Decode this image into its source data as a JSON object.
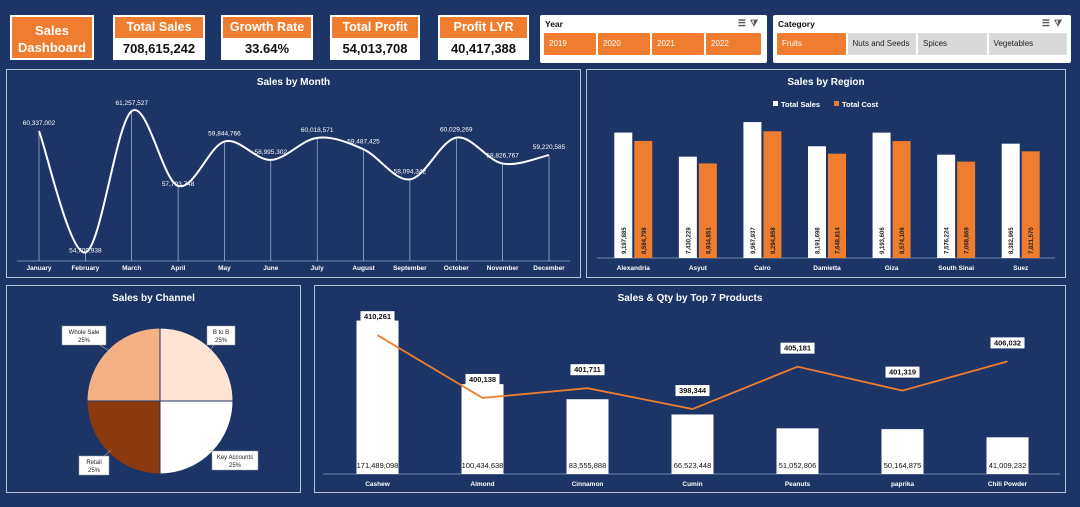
{
  "header": {
    "title": "Sales Dashboard"
  },
  "kpis": [
    {
      "label": "Total Sales",
      "value": "708,615,242"
    },
    {
      "label": "Growth Rate",
      "value": "33.64%"
    },
    {
      "label": "Total Profit",
      "value": "54,013,708"
    },
    {
      "label": "Profit LYR",
      "value": "40,417,388"
    }
  ],
  "slicers": {
    "year": {
      "title": "Year",
      "items": [
        "2019",
        "2020",
        "2021",
        "2022"
      ],
      "selected": [
        "2019",
        "2020",
        "2021",
        "2022"
      ]
    },
    "category": {
      "title": "Category",
      "items": [
        "Fruits",
        "Nuts and Seeds",
        "Spices",
        "Vegetables"
      ],
      "selected": [
        "Fruits"
      ]
    }
  },
  "colors": {
    "background": "#1c3466",
    "accent": "#ee7d2f",
    "series_sales": "#ffffff",
    "series_cost": "#ee7d2f",
    "pie": [
      "#ffe3d5",
      "#ffffff",
      "#8b3a0f",
      "#f4b183"
    ]
  },
  "icons": {
    "multi_select": "multi-select-icon",
    "clear_filter": "clear-filter-icon"
  },
  "chart_data": [
    {
      "type": "line",
      "title": "Sales by Month",
      "categories": [
        "January",
        "February",
        "March",
        "April",
        "May",
        "June",
        "July",
        "August",
        "September",
        "October",
        "November",
        "December"
      ],
      "values": [
        60337002,
        54709938,
        61257527,
        57793748,
        59844766,
        58995302,
        60018571,
        59487425,
        58094342,
        60029269,
        58826767,
        59220585
      ],
      "labels": [
        "60,337,002",
        "54,709,938",
        "61,257,527",
        "57,793,748",
        "59,844,766",
        "58,995,302",
        "60,018,571",
        "59,487,425",
        "58,094,342",
        "60,029,269",
        "58,826,767",
        "59,220,585"
      ],
      "grid": "vertical"
    },
    {
      "type": "bar",
      "title": "Sales by Region",
      "legend": "top",
      "categories": [
        "Alexandria",
        "Asyut",
        "Cairo",
        "Damietta",
        "Giza",
        "South Sinai",
        "Suez"
      ],
      "series": [
        {
          "name": "Total Sales",
          "values": [
            9197885,
            7430229,
            9967937,
            8191698,
            9193606,
            7576224,
            8382965
          ],
          "labels": [
            "9,197,885",
            "7,430,229",
            "9,967,937",
            "8,191,698",
            "9,193,606",
            "7,576,224",
            "8,382,965"
          ]
        },
        {
          "name": "Total Cost",
          "values": [
            8584798,
            6934851,
            9294858,
            7648814,
            8574106,
            7068869,
            7821570
          ],
          "labels": [
            "8,584,798",
            "6,934,851",
            "9,294,858",
            "7,648,814",
            "8,574,106",
            "7,068,869",
            "7,821,570"
          ]
        }
      ]
    },
    {
      "type": "pie",
      "title": "Sales by Channel",
      "slices": [
        {
          "name": "B to B",
          "value": 25,
          "label": "25%"
        },
        {
          "name": "Key Accounts",
          "value": 25,
          "label": "25%"
        },
        {
          "name": "Retail",
          "value": 25,
          "label": "25%"
        },
        {
          "name": "Whole Sale",
          "value": 25,
          "label": "25%"
        }
      ]
    },
    {
      "type": "bar",
      "title": "Sales & Qty by Top 7 Products",
      "categories": [
        "Cashew",
        "Almond",
        "Cinnamon",
        "Cumin",
        "Peanuts",
        "paprika",
        "Chili Powder"
      ],
      "series": [
        {
          "values": [
            171489098,
            100434638,
            83555888,
            66523448,
            51052806,
            50164875,
            41009232
          ],
          "labels": [
            "171,489,098",
            "100,434,638",
            "83,555,888",
            "66,523,448",
            "51,052,806",
            "50,164,875",
            "41,009,232"
          ]
        },
        {
          "type": "line",
          "values": [
            410261,
            400138,
            401711,
            398344,
            405181,
            401319,
            406032
          ],
          "labels": [
            "410,261",
            "400,138",
            "401,711",
            "398,344",
            "405,181",
            "401,319",
            "406,032"
          ]
        }
      ]
    }
  ]
}
